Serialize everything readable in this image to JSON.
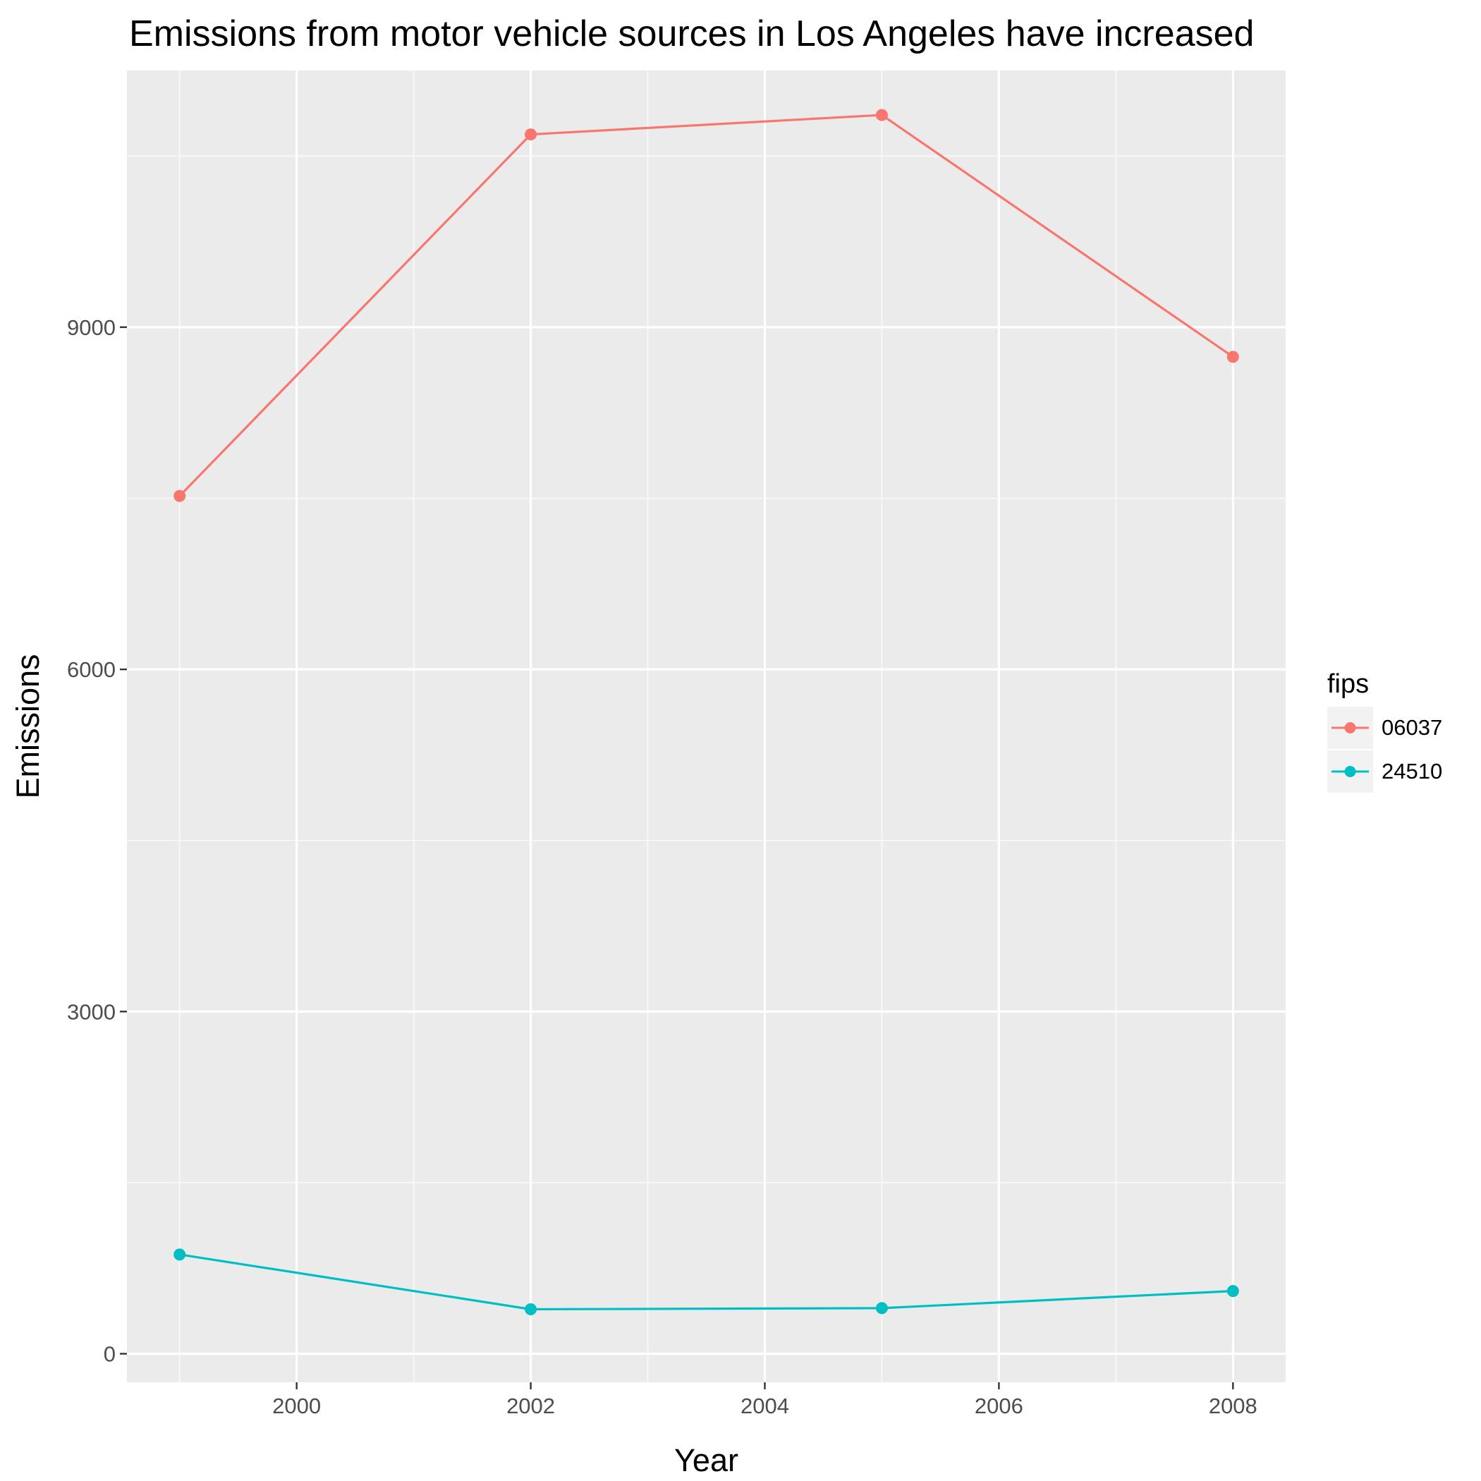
{
  "chart_data": {
    "type": "line",
    "title": "Emissions from motor vehicle sources in Los Angeles have increased",
    "xlabel": "Year",
    "ylabel": "Emissions",
    "x": [
      1999,
      2002,
      2005,
      2008
    ],
    "xlim": [
      1998.55,
      2008.45
    ],
    "ylim": [
      -250,
      11250
    ],
    "x_ticks": [
      2000,
      2002,
      2004,
      2006,
      2008
    ],
    "y_ticks": [
      0,
      3000,
      6000,
      9000
    ],
    "grid": true,
    "legend_title": "fips",
    "legend_position": "right",
    "series": [
      {
        "name": "06037",
        "color": "#F8766D",
        "values": [
          7520,
          10690,
          10860,
          8740
        ]
      },
      {
        "name": "24510",
        "color": "#00BFC4",
        "values": [
          870,
          390,
          400,
          550
        ]
      }
    ]
  }
}
